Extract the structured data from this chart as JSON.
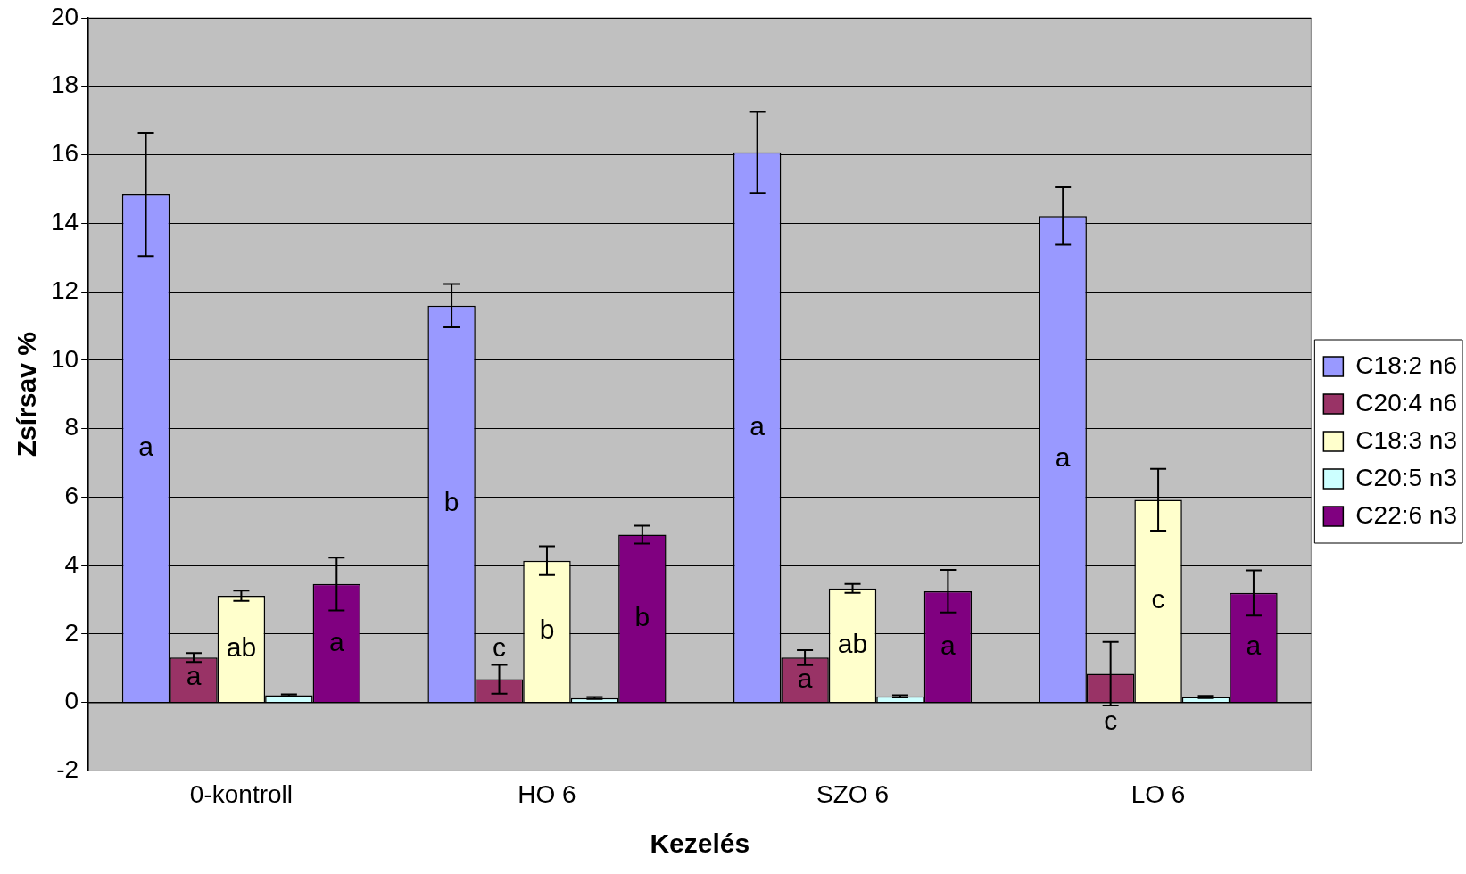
{
  "chart_data": {
    "type": "bar",
    "xlabel": "Kezelés",
    "ylabel": "Zsírsav %",
    "categories": [
      "0-kontroll",
      "HO 6",
      "SZO 6",
      "LO 6"
    ],
    "series": [
      {
        "name": "C18:2 n6",
        "color": "#9999ff",
        "values": [
          14.84,
          11.59,
          16.07,
          14.21
        ],
        "errors": [
          1.8,
          0.63,
          1.18,
          0.84
        ],
        "value_labels": [
          "a",
          "b",
          "a",
          "a"
        ]
      },
      {
        "name": "C20:4 n6",
        "color": "#993366",
        "values": [
          1.31,
          0.68,
          1.31,
          0.84
        ],
        "errors": [
          0.13,
          0.42,
          0.22,
          0.93
        ],
        "value_labels": [
          "a",
          "c",
          "a",
          "c"
        ]
      },
      {
        "name": "C18:3 n3",
        "color": "#ffffcc",
        "values": [
          3.12,
          4.14,
          3.33,
          5.92
        ],
        "errors": [
          0.15,
          0.42,
          0.13,
          0.9
        ],
        "value_labels": [
          "ab",
          "b",
          "ab",
          "c"
        ]
      },
      {
        "name": "C20:5 n3",
        "color": "#ccffff",
        "values": [
          0.21,
          0.13,
          0.18,
          0.16
        ],
        "errors": [
          0.03,
          0.03,
          0.03,
          0.03
        ]
      },
      {
        "name": "C22:6 n3",
        "color": "#800080",
        "values": [
          3.46,
          4.9,
          3.25,
          3.2
        ],
        "errors": [
          0.77,
          0.26,
          0.62,
          0.66
        ],
        "value_labels": [
          "a",
          "b",
          "a",
          "a"
        ]
      }
    ],
    "ylim": [
      -2,
      20
    ],
    "yticks": [
      -2,
      0,
      2,
      4,
      6,
      8,
      10,
      12,
      14,
      16,
      18,
      20
    ],
    "grid": "y",
    "legend": "right"
  }
}
